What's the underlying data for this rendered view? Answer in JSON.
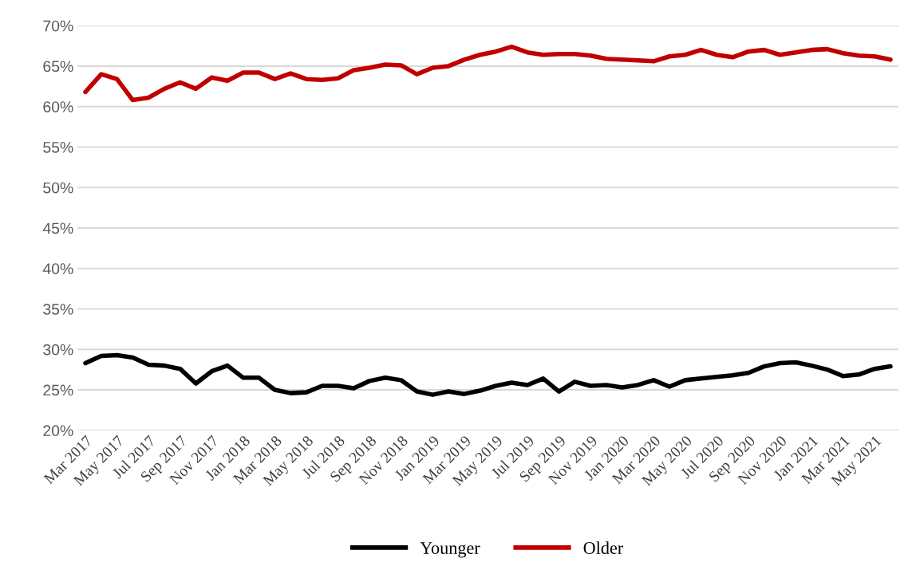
{
  "chart_data": {
    "type": "line",
    "categories": [
      "Mar 2017",
      null,
      "May 2017",
      null,
      "Jul 2017",
      null,
      "Sep 2017",
      null,
      "Nov 2017",
      null,
      "Jan 2018",
      null,
      "Mar 2018",
      null,
      "May 2018",
      null,
      "Jul 2018",
      null,
      "Sep 2018",
      null,
      "Nov 2018",
      null,
      "Jan 2019",
      null,
      "Mar 2019",
      null,
      "May 2019",
      null,
      "Jul 2019",
      null,
      "Sep 2019",
      null,
      "Nov 2019",
      null,
      "Jan 2020",
      null,
      "Mar 2020",
      null,
      "May 2020",
      null,
      "Jul 2020",
      null,
      "Sep 2020",
      null,
      "Nov 2020",
      null,
      "Jan 2021",
      null,
      "Mar 2021",
      null,
      "May 2021",
      null
    ],
    "series": [
      {
        "name": "Younger",
        "color": "#000000",
        "values": [
          28.3,
          29.2,
          29.3,
          29.0,
          28.1,
          28.0,
          27.6,
          25.8,
          27.3,
          28.0,
          26.5,
          26.5,
          25.0,
          24.6,
          24.7,
          25.5,
          25.5,
          25.2,
          26.1,
          26.5,
          26.2,
          24.8,
          24.4,
          24.8,
          24.5,
          24.9,
          25.5,
          25.9,
          25.6,
          26.4,
          24.8,
          26.0,
          25.5,
          25.6,
          25.3,
          25.6,
          26.2,
          25.4,
          26.2,
          26.4,
          26.6,
          26.8,
          27.1,
          27.9,
          28.3,
          28.4,
          28.0,
          27.5,
          26.7,
          26.9,
          27.6,
          27.9
        ]
      },
      {
        "name": "Older",
        "color": "#c00000",
        "values": [
          61.8,
          64.0,
          63.4,
          60.8,
          61.1,
          62.2,
          63.0,
          62.2,
          63.6,
          63.2,
          64.2,
          64.2,
          63.4,
          64.1,
          63.4,
          63.3,
          63.5,
          64.5,
          64.8,
          65.2,
          65.1,
          64.0,
          64.8,
          65.0,
          65.8,
          66.4,
          66.8,
          67.4,
          66.7,
          66.4,
          66.5,
          66.5,
          66.3,
          65.9,
          65.8,
          65.7,
          65.6,
          66.2,
          66.4,
          67.0,
          66.4,
          66.1,
          66.8,
          67.0,
          66.4,
          66.7,
          67.0,
          67.1,
          66.6,
          66.3,
          66.2,
          65.8
        ]
      }
    ],
    "ylim": [
      20,
      70
    ],
    "yticks": [
      {
        "value": 20,
        "label": "20%"
      },
      {
        "value": 25,
        "label": "25%"
      },
      {
        "value": 30,
        "label": "30%"
      },
      {
        "value": 35,
        "label": "35%"
      },
      {
        "value": 40,
        "label": "40%"
      },
      {
        "value": 45,
        "label": "45%"
      },
      {
        "value": 50,
        "label": "50%"
      },
      {
        "value": 55,
        "label": "55%"
      },
      {
        "value": 60,
        "label": "60%"
      },
      {
        "value": 65,
        "label": "65%"
      },
      {
        "value": 70,
        "label": "70%"
      }
    ],
    "grid": "y",
    "legend": "bottom",
    "marker": "none",
    "line_style": "solid"
  }
}
